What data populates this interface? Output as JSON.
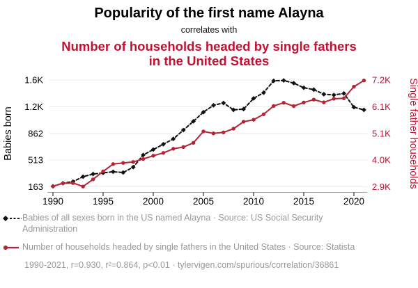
{
  "header": {
    "title": "Popularity of the first name Alayna",
    "connector": "correlates with",
    "subtitle": "Number of households headed by single fathers in the United States"
  },
  "colors": {
    "accent_red": "#c41132",
    "line_red": "#b22436",
    "line_black": "#111111",
    "legend_gray": "#999999",
    "grid_gray": "#ececec",
    "axis_line_gray": "#9b9b9b",
    "tick_mark_dark": "#444444"
  },
  "legend": [
    {
      "marker": "black-diamond-dashed",
      "label": "Babies of all sexes born in the US named Alayna · Source: US Social Security Administration"
    },
    {
      "marker": "red-circle-solid",
      "label": "Number of households headed by single fathers in the United States · Source: Statista"
    }
  ],
  "footnote": "1990-2021, r=0.930, r²=0.864, p<0.01 · tylervigen.com/spurious/correlation/36861",
  "chart_data": {
    "type": "line",
    "x": [
      1990,
      1991,
      1992,
      1993,
      1994,
      1995,
      1996,
      1997,
      1998,
      1999,
      2000,
      2001,
      2002,
      2003,
      2004,
      2005,
      2006,
      2007,
      2008,
      2009,
      2010,
      2011,
      2012,
      2013,
      2014,
      2015,
      2016,
      2017,
      2018,
      2019,
      2020,
      2021
    ],
    "series": [
      {
        "name": "Babies of all sexes born in the US named Alayna",
        "axis": "left",
        "style": "dashed",
        "marker": "diamond",
        "color": "#111111",
        "values": [
          170,
          210,
          230,
          295,
          330,
          345,
          360,
          350,
          420,
          580,
          650,
          720,
          790,
          905,
          1020,
          1140,
          1230,
          1260,
          1170,
          1180,
          1320,
          1395,
          1550,
          1555,
          1520,
          1460,
          1435,
          1375,
          1365,
          1385,
          1205,
          1170
        ]
      },
      {
        "name": "Number of households headed by single fathers in the United States",
        "axis": "right",
        "style": "solid",
        "marker": "circle",
        "color": "#b22436",
        "values": [
          2920,
          3040,
          3050,
          2910,
          3200,
          3520,
          3815,
          3860,
          3900,
          4020,
          4150,
          4265,
          4430,
          4500,
          4670,
          5130,
          5050,
          5090,
          5240,
          5520,
          5600,
          5820,
          6155,
          6285,
          6150,
          6295,
          6410,
          6300,
          6445,
          6465,
          6930,
          7180
        ]
      }
    ],
    "left_axis": {
      "label": "Babies born",
      "range": [
        163,
        1561
      ],
      "ticks": [
        163,
        513,
        862,
        1212,
        1561
      ],
      "tick_labels": [
        "163",
        "513",
        "862",
        "1.2K",
        "1.6K"
      ]
    },
    "right_axis": {
      "label": "Single father households",
      "range": [
        2900,
        7200
      ],
      "ticks": [
        2900,
        3975,
        5050,
        6125,
        7200
      ],
      "tick_labels": [
        "2.9K",
        "4.0K",
        "5.1K",
        "6.1K",
        "7.2K"
      ]
    },
    "x_axis": {
      "range": [
        1990,
        2021
      ],
      "ticks": [
        1990,
        1995,
        2000,
        2005,
        2010,
        2015,
        2020
      ],
      "tick_labels": [
        "1990",
        "1995",
        "2000",
        "2005",
        "2010",
        "2015",
        "2020"
      ]
    },
    "grid": true,
    "legend_position": "bottom"
  }
}
